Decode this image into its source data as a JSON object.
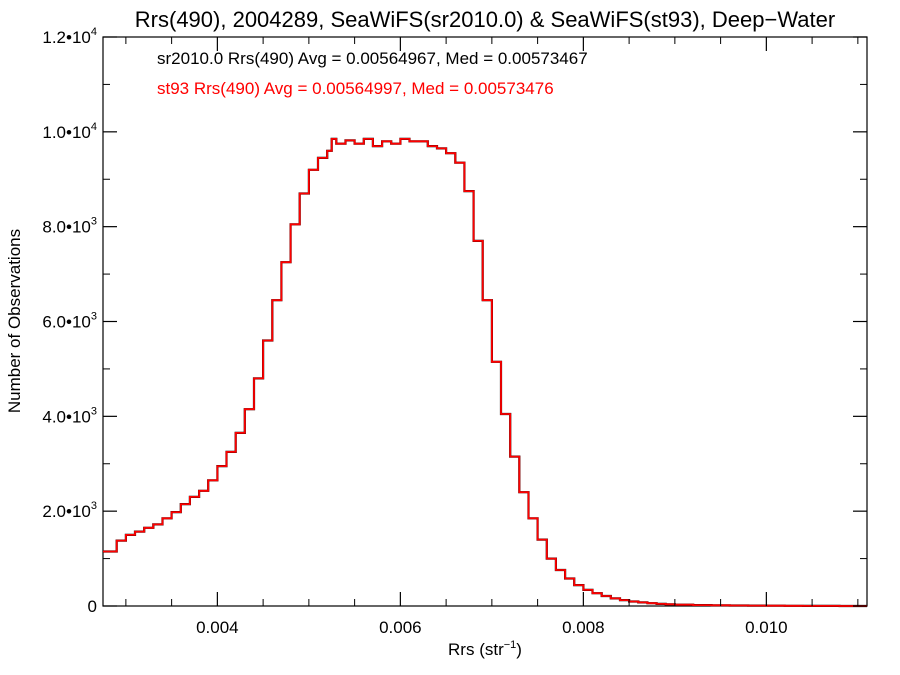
{
  "chart_data": {
    "type": "line",
    "title": "Rrs(490), 2004289, SeaWiFS(sr2010.0) & SeaWiFS(st93), Deep−Water",
    "xlabel": {
      "base": "Rrs (str",
      "sup": "−1",
      "close": ")"
    },
    "ylabel": "Number of Observations",
    "xlim": [
      0.00275,
      0.0111
    ],
    "ylim": [
      0,
      12000
    ],
    "x_ticks": [
      {
        "value": 0.004,
        "label": "0.004"
      },
      {
        "value": 0.006,
        "label": "0.006"
      },
      {
        "value": 0.008,
        "label": "0.008"
      },
      {
        "value": 0.01,
        "label": "0.010"
      }
    ],
    "y_ticks": [
      {
        "value": 0,
        "mant": "0",
        "exp": ""
      },
      {
        "value": 2000,
        "mant": "2.0•10",
        "exp": "3"
      },
      {
        "value": 4000,
        "mant": "4.0•10",
        "exp": "3"
      },
      {
        "value": 6000,
        "mant": "6.0•10",
        "exp": "3"
      },
      {
        "value": 8000,
        "mant": "8.0•10",
        "exp": "3"
      },
      {
        "value": 10000,
        "mant": "1.0•10",
        "exp": "4"
      },
      {
        "value": 12000,
        "mant": "1.2•10",
        "exp": "4"
      }
    ],
    "annotations": [
      {
        "text": "sr2010.0 Rrs(490) Avg = 0.00564967, Med = 0.00573467",
        "color": "#000000"
      },
      {
        "text": "st93 Rrs(490) Avg = 0.00564997, Med = 0.00573476",
        "color": "#ff0000"
      }
    ],
    "grid": false,
    "step": "histogram",
    "series": [
      {
        "color": "#000000",
        "x": [
          0.00275,
          0.0029,
          0.003,
          0.0031,
          0.0032,
          0.0033,
          0.0034,
          0.0035,
          0.0036,
          0.0037,
          0.0038,
          0.0039,
          0.004,
          0.0041,
          0.0042,
          0.0043,
          0.0044,
          0.0045,
          0.0046,
          0.0047,
          0.0048,
          0.0049,
          0.005,
          0.0051,
          0.0052,
          0.00525,
          0.0053,
          0.0054,
          0.0055,
          0.0056,
          0.0057,
          0.0058,
          0.0059,
          0.006,
          0.0061,
          0.0062,
          0.0063,
          0.0064,
          0.0065,
          0.0066,
          0.0067,
          0.0068,
          0.0069,
          0.007,
          0.0071,
          0.0072,
          0.0073,
          0.0074,
          0.0075,
          0.0076,
          0.0077,
          0.0078,
          0.0079,
          0.008,
          0.0081,
          0.0082,
          0.0083,
          0.0084,
          0.0085,
          0.0086,
          0.0087,
          0.0088,
          0.0089,
          0.009,
          0.0092,
          0.0094,
          0.0096,
          0.0098,
          0.01,
          0.0102,
          0.0104,
          0.0106,
          0.0108,
          0.011,
          0.0111
        ],
        "y": [
          1150,
          1380,
          1500,
          1570,
          1650,
          1720,
          1850,
          1980,
          2150,
          2300,
          2430,
          2650,
          2950,
          3250,
          3650,
          4150,
          4800,
          5600,
          6450,
          7250,
          8050,
          8700,
          9200,
          9450,
          9600,
          9850,
          9750,
          9820,
          9750,
          9850,
          9700,
          9800,
          9750,
          9850,
          9800,
          9800,
          9700,
          9650,
          9550,
          9350,
          8750,
          7700,
          6450,
          5150,
          4050,
          3150,
          2400,
          1850,
          1400,
          1000,
          760,
          580,
          440,
          340,
          270,
          210,
          160,
          125,
          95,
          75,
          58,
          45,
          35,
          28,
          20,
          14,
          10,
          8,
          6,
          4,
          3,
          2,
          1,
          1,
          0
        ]
      },
      {
        "color": "#ff0000",
        "x": [
          0.00275,
          0.0029,
          0.003,
          0.0031,
          0.0032,
          0.0033,
          0.0034,
          0.0035,
          0.0036,
          0.0037,
          0.0038,
          0.0039,
          0.004,
          0.0041,
          0.0042,
          0.0043,
          0.0044,
          0.0045,
          0.0046,
          0.0047,
          0.0048,
          0.0049,
          0.005,
          0.0051,
          0.0052,
          0.00525,
          0.0053,
          0.0054,
          0.0055,
          0.0056,
          0.0057,
          0.0058,
          0.0059,
          0.006,
          0.0061,
          0.0062,
          0.0063,
          0.0064,
          0.0065,
          0.0066,
          0.0067,
          0.0068,
          0.0069,
          0.007,
          0.0071,
          0.0072,
          0.0073,
          0.0074,
          0.0075,
          0.0076,
          0.0077,
          0.0078,
          0.0079,
          0.008,
          0.0081,
          0.0082,
          0.0083,
          0.0084,
          0.0085,
          0.0086,
          0.0087,
          0.0088,
          0.0089,
          0.009,
          0.0092,
          0.0094,
          0.0096,
          0.0098,
          0.01,
          0.0102,
          0.0104,
          0.0106,
          0.0108,
          0.011,
          0.0111
        ],
        "y": [
          1150,
          1380,
          1500,
          1570,
          1650,
          1720,
          1850,
          1980,
          2150,
          2300,
          2430,
          2650,
          2950,
          3250,
          3650,
          4150,
          4800,
          5600,
          6450,
          7250,
          8050,
          8700,
          9200,
          9450,
          9600,
          9850,
          9750,
          9820,
          9750,
          9850,
          9700,
          9800,
          9750,
          9850,
          9800,
          9800,
          9700,
          9650,
          9550,
          9350,
          8750,
          7700,
          6450,
          5150,
          4050,
          3150,
          2400,
          1850,
          1400,
          1000,
          760,
          580,
          440,
          340,
          270,
          210,
          160,
          125,
          95,
          75,
          58,
          45,
          35,
          28,
          20,
          14,
          10,
          8,
          6,
          4,
          3,
          2,
          1,
          1,
          0
        ]
      }
    ]
  }
}
